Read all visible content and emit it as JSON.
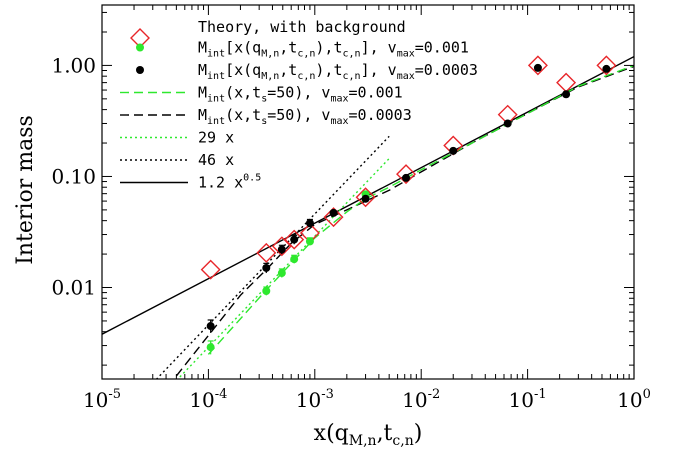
{
  "chart_data": {
    "type": "scatter",
    "xscale": "log",
    "yscale": "log",
    "xlim": [
      1e-05,
      1
    ],
    "ylim": [
      0.0015,
      3.5
    ],
    "xlabel": {
      "main": "x(q",
      "sub": "M,n",
      "mid": ",t",
      "sub2": "c,n",
      "end": ")"
    },
    "ylabel": "Interior mass",
    "x_ticks": [
      {
        "value": 1e-05,
        "base": "10",
        "exp": "-5"
      },
      {
        "value": 0.0001,
        "base": "10",
        "exp": "-4"
      },
      {
        "value": 0.001,
        "base": "10",
        "exp": "-3"
      },
      {
        "value": 0.01,
        "base": "10",
        "exp": "-2"
      },
      {
        "value": 0.1,
        "base": "10",
        "exp": "-1"
      },
      {
        "value": 1,
        "base": "10",
        "exp": "0"
      }
    ],
    "y_ticks": [
      {
        "value": 0.01,
        "label": "0.01"
      },
      {
        "value": 0.1,
        "label": "0.10"
      },
      {
        "value": 1,
        "label": "1.00"
      }
    ],
    "legend_position": "top-left",
    "series": [
      {
        "name": "Theory, with background",
        "kind": "diamond",
        "color": "#e8262a",
        "x": [
          0.000105,
          0.00035,
          0.00049,
          0.00064,
          0.0009,
          0.0015,
          0.003,
          0.0072,
          0.02,
          0.065,
          0.125,
          0.23,
          0.55
        ],
        "y": [
          0.0145,
          0.0205,
          0.0235,
          0.027,
          0.031,
          0.043,
          0.065,
          0.105,
          0.19,
          0.36,
          1.0,
          0.7,
          1.0
        ]
      },
      {
        "name_parts": {
          "pre": "M",
          "s1": "int",
          "a": "[x(q",
          "s2": "M,n",
          "b": ",t",
          "s3": "c,n",
          "c": "),t",
          "s4": "c,n",
          "d": "],  v",
          "s5": "max",
          "e": "=0.001"
        },
        "kind": "dot",
        "color": "#2ee82e",
        "x": [
          0.000105,
          0.00035,
          0.00049,
          0.00064,
          0.0009,
          0.003
        ],
        "y": [
          0.0029,
          0.0093,
          0.0135,
          0.018,
          0.026,
          0.069
        ],
        "err": [
          0.0004,
          0.0008,
          0.0012,
          0.0015,
          0.002,
          0
        ]
      },
      {
        "name_parts": {
          "pre": "M",
          "s1": "int",
          "a": "[x(q",
          "s2": "M,n",
          "b": ",t",
          "s3": "c,n",
          "c": "),t",
          "s4": "c,n",
          "d": "],  v",
          "s5": "max",
          "e": "=0.0003"
        },
        "kind": "dot",
        "color": "#000000",
        "x": [
          0.000105,
          0.00035,
          0.00049,
          0.00064,
          0.0009,
          0.0015,
          0.003,
          0.0072,
          0.02,
          0.065,
          0.125,
          0.23,
          0.55
        ],
        "y": [
          0.0045,
          0.015,
          0.022,
          0.027,
          0.038,
          0.047,
          0.063,
          0.097,
          0.17,
          0.3,
          0.95,
          0.55,
          0.93
        ],
        "err": [
          0.0006,
          0.0015,
          0.002,
          0.0025,
          0.003,
          0,
          0,
          0,
          0,
          0,
          0,
          0,
          0
        ]
      },
      {
        "name_parts": {
          "pre": "M",
          "s1": "int",
          "a": "(x,t",
          "s2": "s",
          "b": "=50),  v",
          "s3": "max",
          "c": "=0.001"
        },
        "kind": "line",
        "dash": "9,5",
        "color": "#2ee82e",
        "x": [
          0.0001,
          0.00035,
          0.0006,
          0.001,
          0.002,
          0.003,
          0.005,
          0.01,
          0.03,
          0.1,
          0.3,
          1.0
        ],
        "y": [
          0.0025,
          0.0095,
          0.0165,
          0.028,
          0.048,
          0.063,
          0.08,
          0.115,
          0.2,
          0.37,
          0.65,
          1.0
        ]
      },
      {
        "name_parts": {
          "pre": "M",
          "s1": "int",
          "a": "(x,t",
          "s2": "s",
          "b": "=50),  v",
          "s3": "max",
          "c": "=0.0003"
        },
        "kind": "line",
        "dash": "9,5",
        "color": "#000000",
        "x": [
          5e-05,
          0.0001,
          0.0002,
          0.00035,
          0.0006,
          0.001,
          0.002,
          0.005,
          0.01,
          0.03,
          0.1,
          0.3,
          1.0
        ],
        "y": [
          0.0016,
          0.0037,
          0.0085,
          0.0145,
          0.025,
          0.037,
          0.05,
          0.075,
          0.11,
          0.2,
          0.37,
          0.64,
          0.98
        ]
      },
      {
        "name": "29 x",
        "kind": "line",
        "dash": "2,3",
        "color": "#2ee82e",
        "x": [
          5e-05,
          0.005
        ],
        "y": [
          0.00145,
          0.145
        ]
      },
      {
        "name": "46 x",
        "kind": "line",
        "dash": "2,3",
        "color": "#000000",
        "x": [
          3e-05,
          0.005
        ],
        "y": [
          0.00138,
          0.23
        ]
      },
      {
        "name_parts": {
          "pre": "1.2 x",
          "sup": "0.5"
        },
        "kind": "line",
        "dash": "",
        "color": "#000000",
        "x": [
          1e-05,
          1.0
        ],
        "y": [
          0.0038,
          1.2
        ]
      }
    ],
    "legend_order": [
      {
        "series": 0,
        "label": "Theory, with background"
      },
      {
        "series": 1
      },
      {
        "series": 2
      },
      {
        "series": 3
      },
      {
        "series": 4
      },
      {
        "series": 5,
        "label": "29 x"
      },
      {
        "series": 6,
        "label": "46 x"
      },
      {
        "series": 7
      }
    ]
  }
}
